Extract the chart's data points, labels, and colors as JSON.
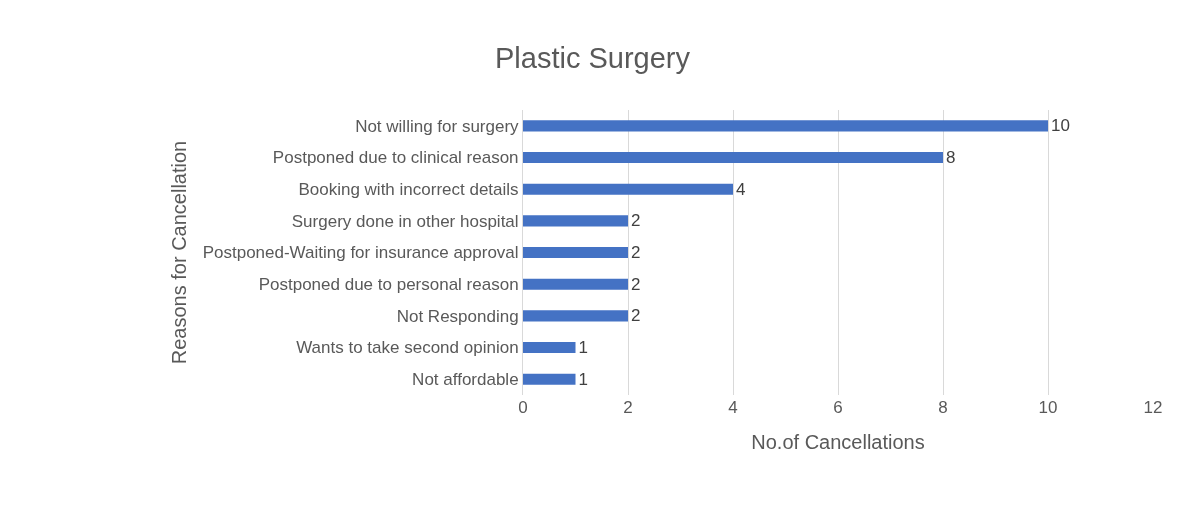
{
  "chart_data": {
    "type": "bar",
    "orientation": "horizontal",
    "title": "Plastic Surgery",
    "xlabel": "No.of Cancellations",
    "ylabel": "Reasons for Cancellation",
    "categories": [
      "Not willing for surgery",
      "Postponed due to clinical reason",
      "Booking with incorrect details",
      "Surgery done in other hospital",
      "Postponed-Waiting for insurance approval",
      "Postponed due to personal reason",
      "Not Responding",
      "Wants to take second opinion",
      "Not affordable"
    ],
    "values": [
      10,
      8,
      4,
      2,
      2,
      2,
      2,
      1,
      1
    ],
    "color": "#4472c4",
    "xlim": [
      0,
      12
    ],
    "xticks": [
      0,
      2,
      4,
      6,
      8,
      10,
      12
    ],
    "grid": "x",
    "data_labels": true
  }
}
